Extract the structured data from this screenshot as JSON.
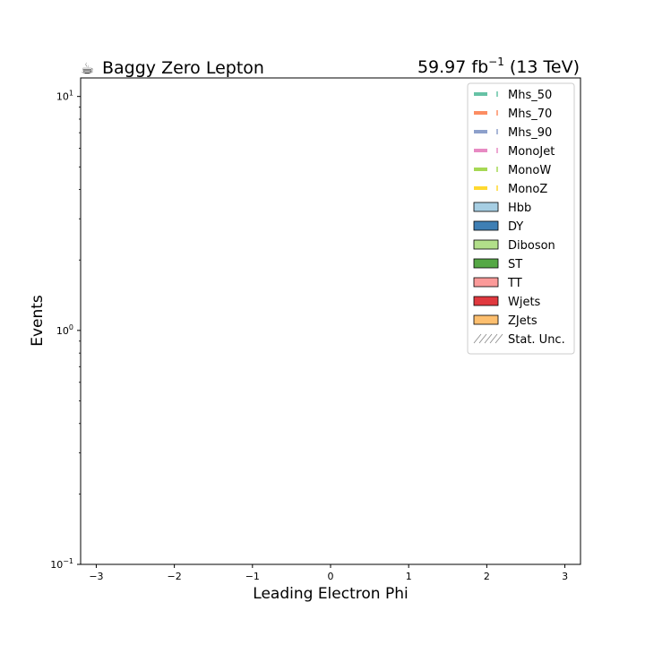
{
  "header": {
    "title_icon": "coffee-cup-icon",
    "title_icon_glyph": "☕",
    "title": "Baggy Zero Lepton",
    "lumi_value": "59.97 fb",
    "lumi_exponent": "−1",
    "lumi_energy": " (13 TeV)"
  },
  "chart_data": {
    "type": "bar",
    "xlabel": "Leading Electron Phi",
    "ylabel": "Events",
    "xlim": [
      -3.2,
      3.2
    ],
    "ylim": [
      0.1,
      12
    ],
    "yscale": "log",
    "grid": false,
    "legend_position": "top-right",
    "x_ticks": [
      {
        "value": -3,
        "label": "−3"
      },
      {
        "value": -2,
        "label": "−2"
      },
      {
        "value": -1,
        "label": "−1"
      },
      {
        "value": 0,
        "label": "0"
      },
      {
        "value": 1,
        "label": "1"
      },
      {
        "value": 2,
        "label": "2"
      },
      {
        "value": 3,
        "label": "3"
      }
    ],
    "y_major_ticks": [
      {
        "value": 0.1,
        "base": "10",
        "exp": "−1"
      },
      {
        "value": 1,
        "base": "10",
        "exp": "0"
      },
      {
        "value": 10,
        "base": "10",
        "exp": "1"
      }
    ],
    "y_minor_ticks": [
      0.2,
      0.3,
      0.4,
      0.5,
      0.6,
      0.7,
      0.8,
      0.9,
      2,
      3,
      4,
      5,
      6,
      7,
      8,
      9
    ],
    "signal_series": [
      {
        "name": "Mhs_50",
        "color": "#66c2a5",
        "values": []
      },
      {
        "name": "Mhs_70",
        "color": "#fc8d62",
        "values": []
      },
      {
        "name": "Mhs_90",
        "color": "#8da0cb",
        "values": []
      },
      {
        "name": "MonoJet",
        "color": "#e78ac3",
        "values": []
      },
      {
        "name": "MonoW",
        "color": "#a6d854",
        "values": []
      },
      {
        "name": "MonoZ",
        "color": "#ffd92f",
        "values": []
      }
    ],
    "background_series": [
      {
        "name": "Hbb",
        "color": "#a6cee3",
        "values": []
      },
      {
        "name": "DY",
        "color": "#3f7fb4",
        "values": []
      },
      {
        "name": "Diboson",
        "color": "#b2df8a",
        "values": []
      },
      {
        "name": "ST",
        "color": "#55a845",
        "values": []
      },
      {
        "name": "TT",
        "color": "#fb9a99",
        "values": []
      },
      {
        "name": "Wjets",
        "color": "#e0393f",
        "values": []
      },
      {
        "name": "ZJets",
        "color": "#fdbf6f",
        "values": []
      }
    ],
    "uncertainty_label": "Stat. Unc."
  }
}
